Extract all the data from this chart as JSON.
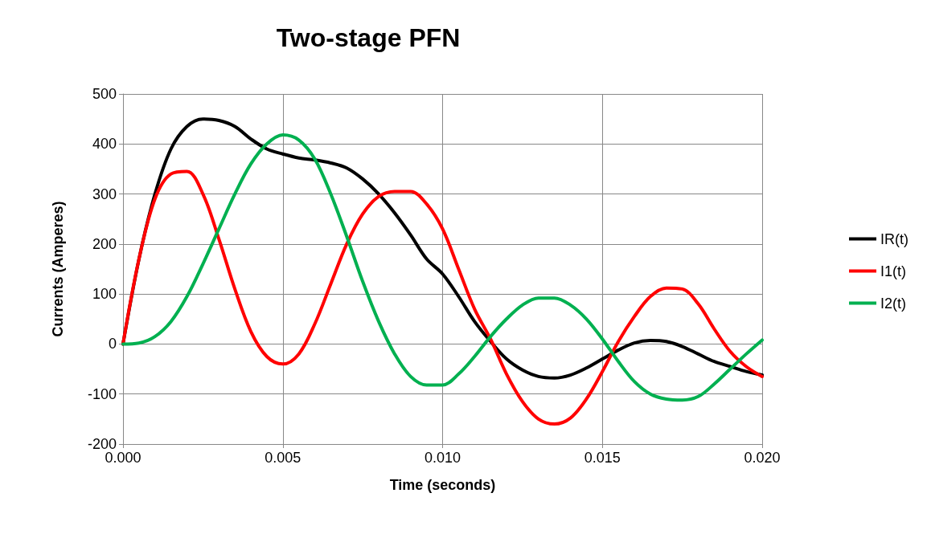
{
  "chart_data": {
    "type": "line",
    "title": "Two-stage PFN",
    "xlabel": "Time (seconds)",
    "ylabel": "Currents (Amperes)",
    "x": [
      0,
      0.0005,
      0.001,
      0.0015,
      0.002,
      0.0025,
      0.003,
      0.0035,
      0.004,
      0.0045,
      0.005,
      0.0055,
      0.006,
      0.0065,
      0.007,
      0.0075,
      0.008,
      0.0085,
      0.009,
      0.0095,
      0.01,
      0.0105,
      0.011,
      0.0115,
      0.012,
      0.0125,
      0.013,
      0.0135,
      0.014,
      0.0145,
      0.015,
      0.0155,
      0.016,
      0.0165,
      0.017,
      0.0175,
      0.018,
      0.0185,
      0.019,
      0.0195,
      0.02
    ],
    "series": [
      {
        "name": "IR(t)",
        "color": "#000000",
        "values": [
          0,
          170,
          300,
          390,
          435,
          450,
          447,
          435,
          410,
          390,
          380,
          372,
          368,
          362,
          352,
          330,
          300,
          262,
          218,
          170,
          140,
          95,
          45,
          5,
          -30,
          -52,
          -65,
          -68,
          -62,
          -48,
          -30,
          -12,
          2,
          7,
          5,
          -5,
          -20,
          -35,
          -45,
          -55,
          -62
        ]
      },
      {
        "name": "I1(t)",
        "color": "#ff0000",
        "values": [
          0,
          170,
          290,
          340,
          345,
          300,
          210,
          110,
          25,
          -25,
          -40,
          -20,
          40,
          120,
          200,
          260,
          295,
          305,
          305,
          280,
          230,
          150,
          70,
          10,
          -60,
          -115,
          -150,
          -160,
          -148,
          -110,
          -55,
          5,
          55,
          95,
          112,
          110,
          80,
          30,
          -15,
          -45,
          -65
        ]
      },
      {
        "name": "I2(t)",
        "color": "#00b050",
        "values": [
          0,
          2,
          15,
          45,
          95,
          160,
          230,
          300,
          360,
          400,
          418,
          408,
          370,
          300,
          215,
          125,
          45,
          -20,
          -65,
          -82,
          -82,
          -60,
          -25,
          15,
          50,
          78,
          92,
          92,
          78,
          50,
          10,
          -35,
          -75,
          -100,
          -110,
          -112,
          -105,
          -80,
          -50,
          -20,
          8
        ]
      }
    ],
    "xlim": [
      0,
      0.02
    ],
    "xticks": [
      {
        "value": 0,
        "label": "0.000"
      },
      {
        "value": 0.005,
        "label": "0.005"
      },
      {
        "value": 0.01,
        "label": "0.010"
      },
      {
        "value": 0.015,
        "label": "0.015"
      },
      {
        "value": 0.02,
        "label": "0.020"
      }
    ],
    "ylim": [
      -200,
      500
    ],
    "yticks": [
      -200,
      -100,
      0,
      100,
      200,
      300,
      400,
      500
    ],
    "grid": true,
    "legend": "right",
    "marker": "none",
    "line_style": "solid"
  }
}
